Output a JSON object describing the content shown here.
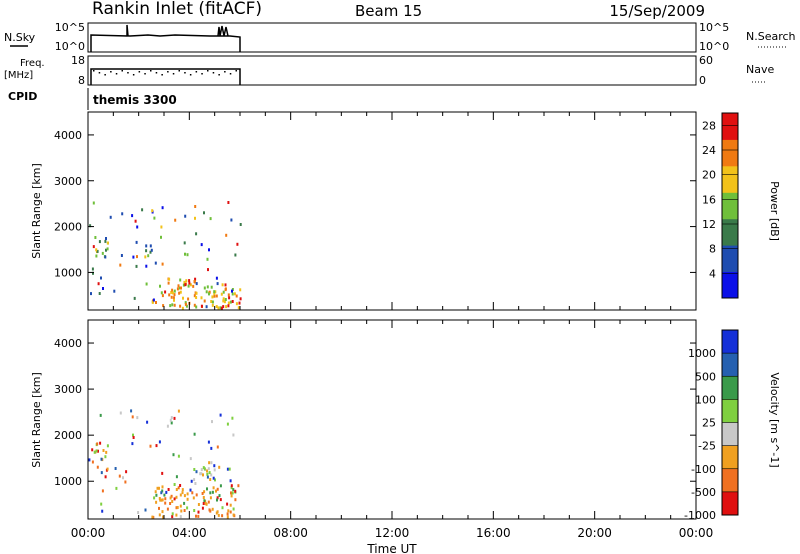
{
  "header": {
    "station": "Rankin Inlet (fitACF)",
    "beam": "Beam 15",
    "date": "15/Sep/2009"
  },
  "status_panels": {
    "nsky": {
      "label": "N.Sky",
      "ticks_left": [
        "10^5",
        "10^0"
      ],
      "ticks_right": [
        "10^5",
        "10^0"
      ],
      "right_label": "N.Search"
    },
    "freq": {
      "label_line1": "Freq.",
      "label_line2": "[MHz]",
      "ticks_left": [
        "18",
        "8"
      ],
      "ticks_right": [
        "60",
        "0"
      ],
      "right_label": "Nave"
    },
    "cpid": {
      "label": "CPID",
      "value": "themis 3300"
    }
  },
  "chart_data": [
    {
      "type": "heatmap",
      "name": "power",
      "ylabel": "Slant Range [km]",
      "xlabel": "",
      "xlim": [
        0,
        24
      ],
      "ylim": [
        180,
        4500
      ],
      "y_ticks": [
        "1000",
        "2000",
        "3000",
        "4000"
      ],
      "colorbar_label": "Power [dB]",
      "colorbar_ticks": [
        "4",
        "8",
        "12",
        "16",
        "20",
        "24",
        "28"
      ],
      "colorbar_colors": [
        "#0b10e8",
        "#1f4db0",
        "#3a7a4a",
        "#6fbf3a",
        "#f2c21a",
        "#f07a12",
        "#e01010"
      ],
      "colorbar_range": [
        0,
        30
      ],
      "data_extent_hours": [
        0.0,
        6.0
      ],
      "features": [
        {
          "t0": 0.15,
          "t1": 0.75,
          "r0": 1200,
          "r1": 1800,
          "value": 12
        },
        {
          "t0": 2.1,
          "t1": 2.5,
          "r0": 1300,
          "r1": 1650,
          "value": 10
        },
        {
          "t0": 2.5,
          "t1": 6.0,
          "r0": 180,
          "r1": 700,
          "value": 20
        },
        {
          "t0": 3.0,
          "t1": 4.2,
          "r0": 500,
          "r1": 900,
          "value": 24
        },
        {
          "t0": 5.2,
          "t1": 6.0,
          "r0": 180,
          "r1": 450,
          "value": 28
        }
      ]
    },
    {
      "type": "heatmap",
      "name": "velocity",
      "ylabel": "Slant Range [km]",
      "xlabel": "Time UT",
      "xlim": [
        0,
        24
      ],
      "ylim": [
        180,
        4500
      ],
      "x_ticks": [
        "00:00",
        "04:00",
        "08:00",
        "12:00",
        "16:00",
        "20:00",
        "00:00"
      ],
      "y_ticks": [
        "1000",
        "2000",
        "3000",
        "4000"
      ],
      "colorbar_label": "Velocity [m s^-1]",
      "colorbar_ticks": [
        "1000",
        "500",
        "100",
        "25",
        "-25",
        "-100",
        "-500",
        "-1000"
      ],
      "colorbar_colors": [
        "#1530d8",
        "#2560b0",
        "#3a9a4a",
        "#7fd040",
        "#c8c8c8",
        "#f0a020",
        "#f07020",
        "#e01010"
      ],
      "data_extent_hours": [
        0.0,
        6.0
      ],
      "features": [
        {
          "t0": 0.15,
          "t1": 0.75,
          "r0": 1200,
          "r1": 1800,
          "value": -100
        },
        {
          "t0": 2.5,
          "t1": 6.0,
          "r0": 180,
          "r1": 900,
          "value": -100
        },
        {
          "t0": 4.1,
          "t1": 5.0,
          "r0": 900,
          "r1": 1400,
          "value": 0
        }
      ]
    }
  ]
}
